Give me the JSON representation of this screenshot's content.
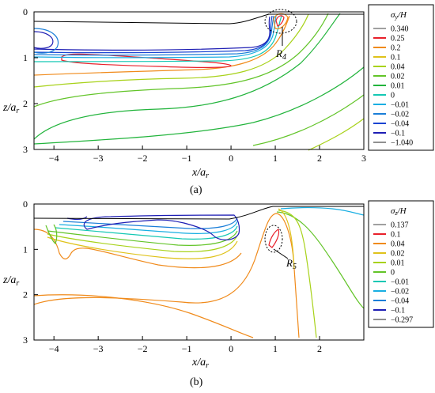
{
  "panels": [
    {
      "id": "a",
      "caption": "(a)",
      "xlabel": "x/a_r",
      "ylabel": "z/a_r",
      "legend_title": "σ_y/H",
      "annotation": "R_4",
      "chart_data": {
        "type": "contour",
        "x_ticks": [
          -4,
          -3,
          -2,
          -1,
          0,
          1,
          2,
          3
        ],
        "y_ticks": [
          0,
          1,
          2,
          3
        ],
        "xlim": [
          -4.45,
          3
        ],
        "ylim": [
          0,
          3
        ],
        "y_inverted": true,
        "levels": [
          "0.340",
          "0.25",
          "0.2",
          "0.1",
          "0.04",
          "0.02",
          "0.01",
          "0",
          "−0.01",
          "−0.02",
          "−0.04",
          "−0.1",
          "−1.040"
        ],
        "level_colors": [
          "#a0a0a0",
          "#e8202a",
          "#f08a1a",
          "#dfc21a",
          "#a8d21a",
          "#62c428",
          "#22b43c",
          "#14c8b4",
          "#18aee2",
          "#1a7ed8",
          "#1a44d2",
          "#1e1eb4",
          "#909090"
        ],
        "surface": [
          [
            -4.45,
            0.2
          ],
          [
            0,
            0.16
          ],
          [
            0.3,
            0.1
          ],
          [
            0.65,
            0.0
          ],
          [
            0.95,
            -0.02
          ],
          [
            3,
            -0.02
          ]
        ]
      }
    },
    {
      "id": "b",
      "caption": "(b)",
      "xlabel": "x/a_r",
      "ylabel": "z/a_r",
      "legend_title": "σ_z/H",
      "annotation": "R_5",
      "chart_data": {
        "type": "contour",
        "x_ticks": [
          -4,
          -3,
          -2,
          -1,
          0,
          1,
          2
        ],
        "y_ticks": [
          0,
          1,
          2,
          3
        ],
        "xlim": [
          -4.45,
          3
        ],
        "ylim": [
          0,
          3
        ],
        "y_inverted": true,
        "levels": [
          "0.137",
          "0.1",
          "0.04",
          "0.02",
          "0.01",
          "0",
          "−0.01",
          "−0.02",
          "−0.04",
          "−0.1",
          "−0.297"
        ],
        "level_colors": [
          "#a0a0a0",
          "#e8202a",
          "#f08a1a",
          "#dfc21a",
          "#a8d21a",
          "#62c428",
          "#14c8b4",
          "#18aee2",
          "#1a7ed8",
          "#1e1eb4",
          "#909090"
        ],
        "surface": [
          [
            -4.45,
            0.22
          ],
          [
            0,
            0.21
          ],
          [
            0.4,
            0.1
          ],
          [
            0.75,
            0.0
          ],
          [
            1.05,
            -0.02
          ],
          [
            3,
            -0.02
          ]
        ]
      }
    }
  ]
}
